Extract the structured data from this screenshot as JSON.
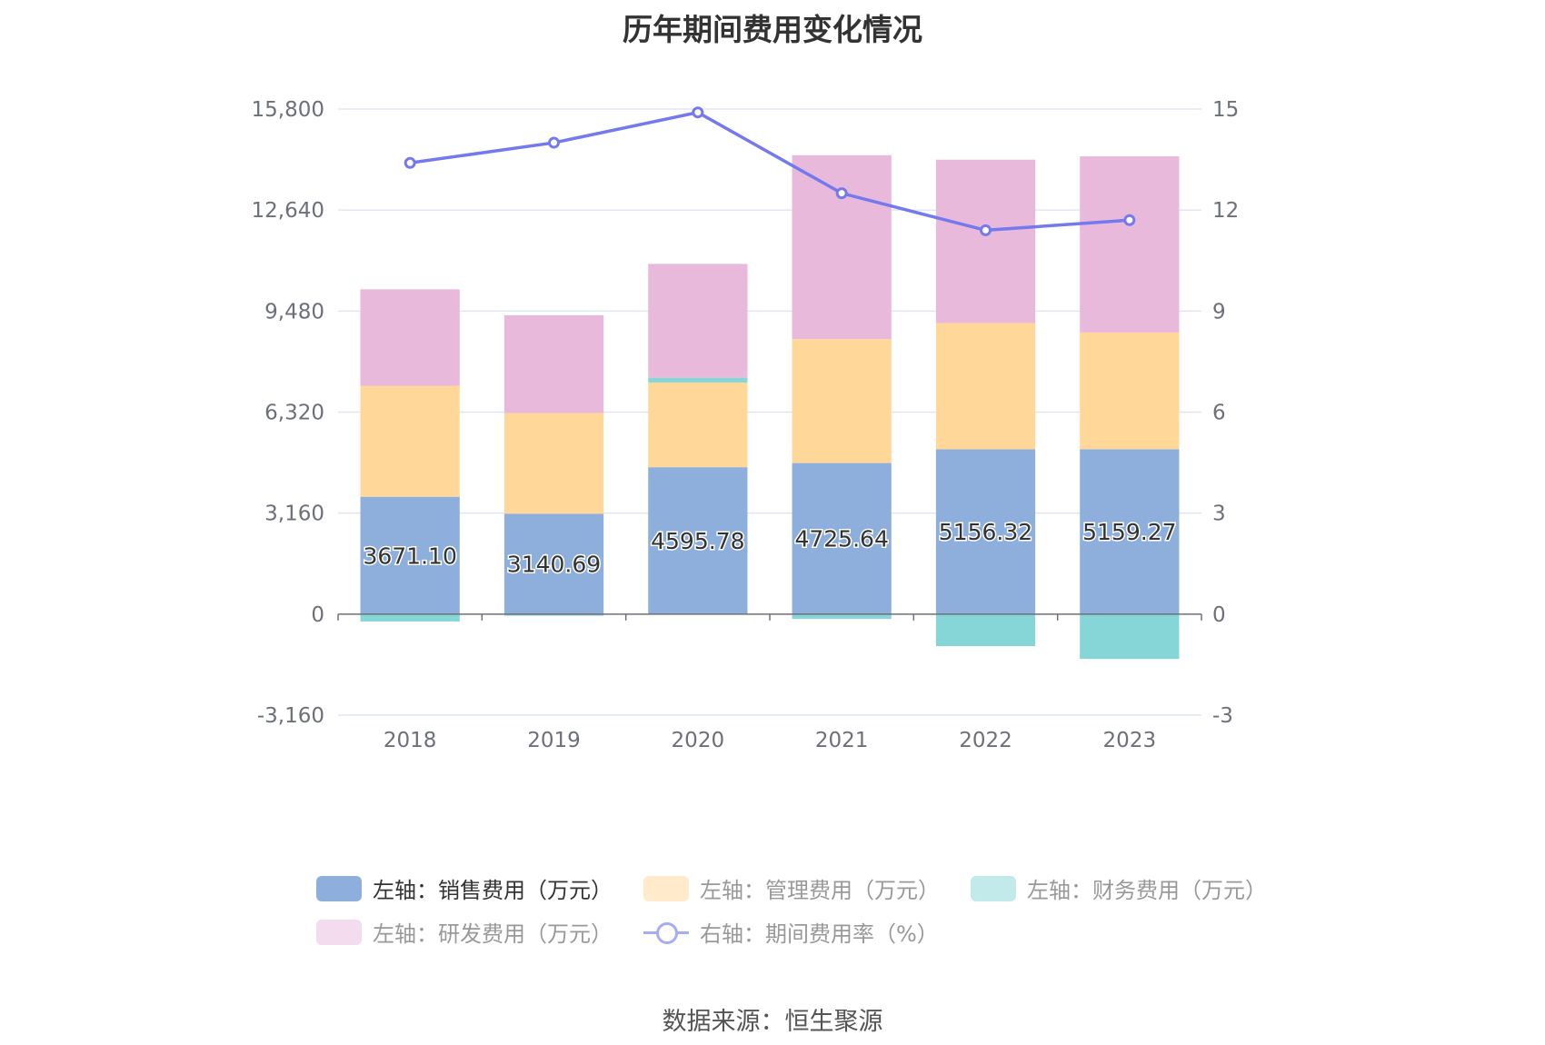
{
  "chart_data": {
    "type": "bar",
    "title": "历年期间费用变化情况",
    "categories": [
      "2018",
      "2019",
      "2020",
      "2021",
      "2022",
      "2023"
    ],
    "left_axis": {
      "ticks": [
        "15,800",
        "12,640",
        "9,480",
        "6,320",
        "3,160",
        "0",
        "-3,160"
      ],
      "min": -3160,
      "max": 15800
    },
    "right_axis": {
      "ticks": [
        "15",
        "12",
        "9",
        "6",
        "3",
        "0",
        "-3"
      ],
      "min": -3,
      "max": 15
    },
    "series": [
      {
        "name": "左轴：销售费用（万元）",
        "axis": "left",
        "stack": true,
        "color": "#8eaedb",
        "values": [
          3671.1,
          3140.69,
          4595.78,
          4725.64,
          5156.32,
          5159.27
        ],
        "labels": [
          "3671.10",
          "3140.69",
          "4595.78",
          "4725.64",
          "5156.32",
          "5159.27"
        ]
      },
      {
        "name": "左轴：管理费用（万元）",
        "axis": "left",
        "stack": true,
        "color": "#ffd899",
        "values": [
          3470,
          3150,
          2650,
          3880,
          3950,
          3650
        ]
      },
      {
        "name": "左轴：财务费用（万元）",
        "axis": "left",
        "stack": true,
        "color": "#86d6d8",
        "values": [
          -230,
          -50,
          150,
          -150,
          -1000,
          -1400
        ]
      },
      {
        "name": "左轴：研发费用（万元）",
        "axis": "left",
        "stack": true,
        "color": "#e8b9da",
        "values": [
          3020,
          3060,
          3560,
          5750,
          5110,
          5510
        ]
      },
      {
        "name": "右轴：期间费用率（%）",
        "axis": "right",
        "type": "line",
        "color": "#7479ee",
        "values": [
          13.4,
          14.0,
          14.9,
          12.5,
          11.4,
          11.7
        ]
      }
    ],
    "legend": [
      "左轴：销售费用（万元）",
      "左轴：管理费用（万元）",
      "左轴：财务费用（万元）",
      "左轴：研发费用（万元）",
      "右轴：期间费用率（%）"
    ]
  },
  "source": "数据来源：恒生聚源"
}
